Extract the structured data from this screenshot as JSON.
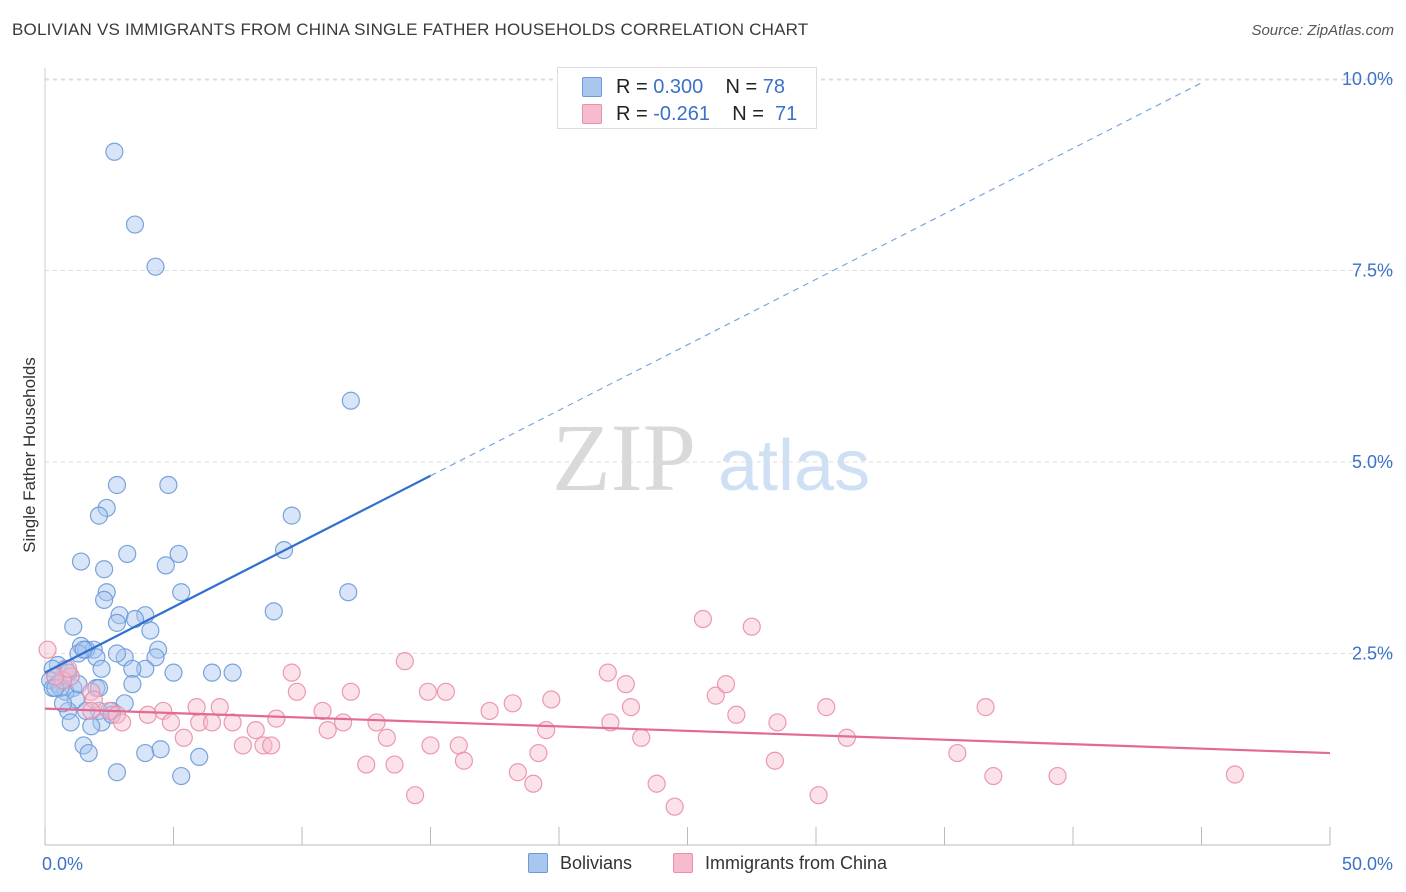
{
  "header": {
    "title": "BOLIVIAN VS IMMIGRANTS FROM CHINA SINGLE FATHER HOUSEHOLDS CORRELATION CHART",
    "source": "Source: ZipAtlas.com"
  },
  "watermark": {
    "zip": "ZIP",
    "atlas": "atlas"
  },
  "colors": {
    "blue_fill": "#a9c6ef",
    "blue_stroke": "#6a9ad8",
    "blue_line": "#2f6fcf",
    "pink_fill": "#f6bccd",
    "pink_stroke": "#ea8eaa",
    "pink_line": "#e36a93",
    "axis_text": "#3b72c7",
    "grid": "#dddddd"
  },
  "legend_top": {
    "rows": [
      {
        "r_label": "R =",
        "r_value": "0.300",
        "n_label": "N =",
        "n_value": "78"
      },
      {
        "r_label": "R =",
        "r_value": "-0.261",
        "n_label": "N =",
        "n_value": "71"
      }
    ]
  },
  "legend_bottom": {
    "items": [
      "Bolivians",
      "Immigrants from China"
    ]
  },
  "chart_data": {
    "type": "scatter",
    "title": "BOLIVIAN VS IMMIGRANTS FROM CHINA SINGLE FATHER HOUSEHOLDS CORRELATION CHART",
    "xlabel": "",
    "ylabel": "Single Father Households",
    "xlim": [
      0,
      50
    ],
    "ylim": [
      0,
      10.5
    ],
    "x_ticks": [
      0,
      50
    ],
    "x_tick_labels": [
      "0.0%",
      "50.0%"
    ],
    "y_ticks": [
      2.5,
      5.0,
      7.5,
      10.0
    ],
    "y_tick_labels": [
      "2.5%",
      "5.0%",
      "7.5%",
      "10.0%"
    ],
    "grid": "horizontal dashed",
    "legend_position": "top-center",
    "series": [
      {
        "name": "Bolivians",
        "r": 0.3,
        "n": 78,
        "trend": {
          "x": [
            0,
            15
          ],
          "y": [
            2.25,
            4.82
          ],
          "dashed_extension_to": [
            45,
            9.95
          ]
        },
        "points": [
          [
            2.7,
            9.05
          ],
          [
            3.5,
            8.1
          ],
          [
            4.3,
            7.55
          ],
          [
            11.9,
            5.8
          ],
          [
            2.8,
            4.7
          ],
          [
            4.8,
            4.7
          ],
          [
            2.4,
            4.4
          ],
          [
            2.1,
            4.3
          ],
          [
            9.6,
            4.3
          ],
          [
            1.4,
            3.7
          ],
          [
            3.2,
            3.8
          ],
          [
            5.2,
            3.8
          ],
          [
            9.3,
            3.85
          ],
          [
            2.3,
            3.6
          ],
          [
            4.7,
            3.65
          ],
          [
            2.4,
            3.3
          ],
          [
            5.3,
            3.3
          ],
          [
            11.8,
            3.3
          ],
          [
            2.3,
            3.2
          ],
          [
            2.9,
            3.0
          ],
          [
            3.9,
            3.0
          ],
          [
            3.5,
            2.95
          ],
          [
            8.9,
            3.05
          ],
          [
            2.8,
            2.9
          ],
          [
            4.1,
            2.8
          ],
          [
            1.1,
            2.85
          ],
          [
            1.4,
            2.6
          ],
          [
            1.9,
            2.55
          ],
          [
            1.6,
            2.55
          ],
          [
            4.4,
            2.55
          ],
          [
            2.0,
            2.45
          ],
          [
            3.1,
            2.45
          ],
          [
            1.3,
            2.5
          ],
          [
            4.3,
            2.45
          ],
          [
            0.5,
            2.35
          ],
          [
            0.8,
            2.3
          ],
          [
            0.3,
            2.3
          ],
          [
            2.2,
            2.3
          ],
          [
            3.9,
            2.3
          ],
          [
            5.0,
            2.25
          ],
          [
            6.5,
            2.25
          ],
          [
            7.3,
            2.25
          ],
          [
            3.4,
            2.3
          ],
          [
            0.4,
            2.2
          ],
          [
            1.0,
            2.2
          ],
          [
            0.7,
            2.15
          ],
          [
            0.2,
            2.15
          ],
          [
            0.5,
            2.1
          ],
          [
            1.1,
            2.05
          ],
          [
            2.0,
            2.05
          ],
          [
            3.4,
            2.1
          ],
          [
            0.3,
            2.05
          ],
          [
            0.8,
            2.0
          ],
          [
            0.6,
            2.05
          ],
          [
            2.1,
            2.05
          ],
          [
            1.2,
            1.9
          ],
          [
            3.1,
            1.85
          ],
          [
            0.9,
            1.75
          ],
          [
            2.1,
            1.75
          ],
          [
            1.6,
            1.75
          ],
          [
            2.6,
            1.75
          ],
          [
            1.0,
            1.6
          ],
          [
            2.2,
            1.6
          ],
          [
            1.8,
            1.55
          ],
          [
            2.6,
            1.7
          ],
          [
            0.7,
            1.85
          ],
          [
            1.5,
            1.3
          ],
          [
            1.7,
            1.2
          ],
          [
            3.9,
            1.2
          ],
          [
            4.5,
            1.25
          ],
          [
            6.0,
            1.15
          ],
          [
            2.8,
            0.95
          ],
          [
            5.3,
            0.9
          ],
          [
            1.5,
            2.55
          ],
          [
            0.9,
            2.25
          ],
          [
            1.3,
            2.1
          ],
          [
            2.8,
            2.5
          ],
          [
            0.4,
            2.05
          ]
        ]
      },
      {
        "name": "Immigrants from China",
        "r": -0.261,
        "n": 71,
        "trend": {
          "x": [
            0,
            50
          ],
          "y": [
            1.78,
            1.2
          ]
        },
        "points": [
          [
            0.1,
            2.55
          ],
          [
            1.0,
            2.2
          ],
          [
            0.7,
            2.15
          ],
          [
            0.4,
            2.2
          ],
          [
            0.9,
            2.3
          ],
          [
            1.8,
            2.0
          ],
          [
            1.9,
            1.9
          ],
          [
            1.8,
            1.75
          ],
          [
            2.5,
            1.75
          ],
          [
            2.8,
            1.7
          ],
          [
            3.0,
            1.6
          ],
          [
            4.0,
            1.7
          ],
          [
            4.6,
            1.75
          ],
          [
            4.9,
            1.6
          ],
          [
            5.4,
            1.4
          ],
          [
            5.9,
            1.8
          ],
          [
            6.0,
            1.6
          ],
          [
            6.5,
            1.6
          ],
          [
            6.8,
            1.8
          ],
          [
            7.3,
            1.6
          ],
          [
            7.7,
            1.3
          ],
          [
            8.2,
            1.5
          ],
          [
            8.5,
            1.3
          ],
          [
            8.8,
            1.3
          ],
          [
            9.0,
            1.65
          ],
          [
            9.6,
            2.25
          ],
          [
            9.8,
            2.0
          ],
          [
            10.8,
            1.75
          ],
          [
            11.0,
            1.5
          ],
          [
            11.6,
            1.6
          ],
          [
            11.9,
            2.0
          ],
          [
            12.5,
            1.05
          ],
          [
            12.9,
            1.6
          ],
          [
            13.3,
            1.4
          ],
          [
            13.6,
            1.05
          ],
          [
            14.0,
            2.4
          ],
          [
            14.4,
            0.65
          ],
          [
            14.9,
            2.0
          ],
          [
            15.0,
            1.3
          ],
          [
            15.6,
            2.0
          ],
          [
            16.1,
            1.3
          ],
          [
            16.3,
            1.1
          ],
          [
            17.3,
            1.75
          ],
          [
            18.2,
            1.85
          ],
          [
            18.4,
            0.95
          ],
          [
            19.0,
            0.8
          ],
          [
            19.2,
            1.2
          ],
          [
            19.5,
            1.5
          ],
          [
            19.7,
            1.9
          ],
          [
            21.9,
            2.25
          ],
          [
            22.0,
            1.6
          ],
          [
            22.6,
            2.1
          ],
          [
            22.8,
            1.8
          ],
          [
            23.2,
            1.4
          ],
          [
            23.8,
            0.8
          ],
          [
            24.5,
            0.5
          ],
          [
            25.6,
            2.95
          ],
          [
            26.1,
            1.95
          ],
          [
            26.5,
            2.1
          ],
          [
            26.9,
            1.7
          ],
          [
            27.5,
            2.85
          ],
          [
            28.4,
            1.1
          ],
          [
            28.5,
            1.6
          ],
          [
            30.1,
            0.65
          ],
          [
            30.4,
            1.8
          ],
          [
            31.2,
            1.4
          ],
          [
            35.5,
            1.2
          ],
          [
            36.6,
            1.8
          ],
          [
            36.9,
            0.9
          ],
          [
            39.4,
            0.9
          ],
          [
            46.3,
            0.92
          ]
        ]
      }
    ]
  }
}
